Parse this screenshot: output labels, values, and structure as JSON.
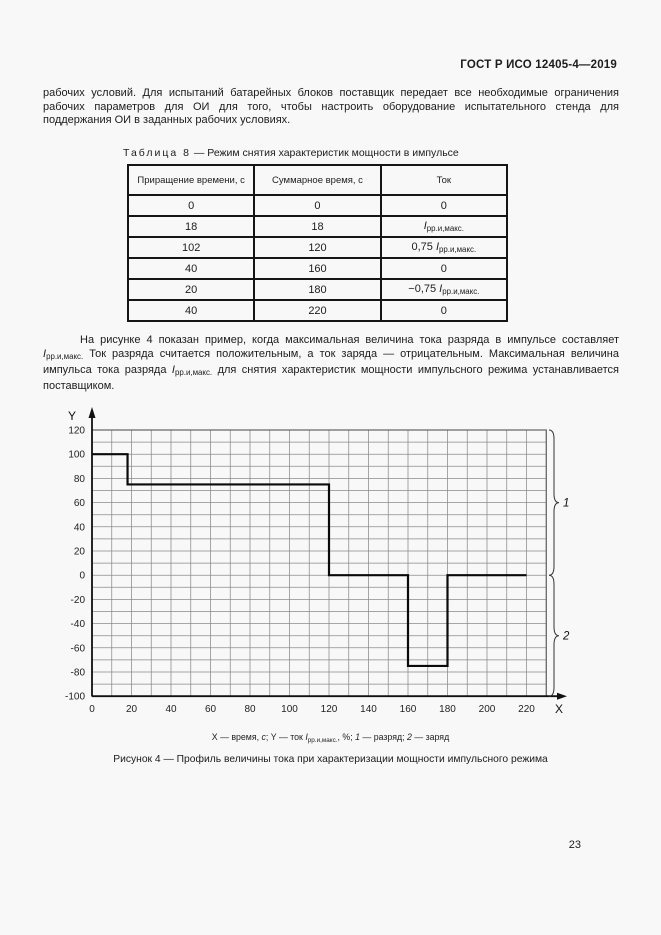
{
  "header": {
    "title": "ГОСТ Р ИСО 12405-4—2019"
  },
  "paragraphs": {
    "p1": "рабочих условий. Для испытаний батарейных блоков поставщик передает все необходимые ограничения рабочих параметров для ОИ для того, чтобы настроить оборудование испытательного стенда для поддержания ОИ в заданных рабочих условиях.",
    "p2": "На рисунке 4 показан пример, когда максимальная величина тока разряда в импульсе составляет [[i:I]][[sub:рр.и,макс.]] Ток разряда считается положительным, а ток заряда — отрицательным. Максимальная величина импульса тока разряда [[i:I]][[sub:рр.и,макс.]] для снятия характеристик мощности импульсного режима устанавливается поставщиком."
  },
  "table": {
    "title_word": "Таблица 8",
    "title_rest": " — Режим снятия характеристик мощности в импульсе",
    "columns": [
      "Приращение времени, с",
      "Суммарное время, с",
      "Ток"
    ],
    "rows": [
      [
        "0",
        "0",
        "0"
      ],
      [
        "18",
        "18",
        "[[i:I]][[sub:рр.и,макс.]]"
      ],
      [
        "102",
        "120",
        "0,75 [[i:I]][[sub:рр.и,макс.]]"
      ],
      [
        "40",
        "160",
        "0"
      ],
      [
        "20",
        "180",
        "−0,75 [[i:I]][[sub:рр.и,макс.]]"
      ],
      [
        "40",
        "220",
        "0"
      ]
    ]
  },
  "figure": {
    "legend": "X — время, [[i:с]]; Y — ток [[i:I]][[sub:рр.и,макс.]], %; [[i:1]] — разряд; [[i:2]] — заряд",
    "caption": "Рисунок 4 — Профиль величины тока при характеризации мощности импульсного режима"
  },
  "footer": {
    "page_number": "23"
  },
  "chart_data": {
    "type": "line",
    "style": "step-profile",
    "xlabel": "X",
    "ylabel": "Y",
    "xlim": [
      0,
      230
    ],
    "ylim": [
      -100,
      120
    ],
    "grid": true,
    "grid_step": 10,
    "xticks": [
      0,
      20,
      40,
      60,
      80,
      100,
      120,
      140,
      160,
      180,
      200,
      220
    ],
    "yticks": [
      120,
      100,
      80,
      60,
      40,
      20,
      0,
      -20,
      -40,
      -60,
      -80,
      -100
    ],
    "series": [
      {
        "name": "ток, % от Iрр.и,макс.",
        "x": [
          0,
          18,
          18,
          120,
          120,
          160,
          160,
          180,
          180,
          220
        ],
        "y": [
          100,
          100,
          75,
          75,
          0,
          0,
          -75,
          -75,
          0,
          0
        ]
      }
    ],
    "annotations": [
      {
        "label": "1",
        "meaning": "разряд",
        "y_from": 120,
        "y_to": 0
      },
      {
        "label": "2",
        "meaning": "заряд",
        "y_from": 0,
        "y_to": -100
      }
    ],
    "colors": {
      "line": "#0a0a0a",
      "grid": "#8a8a8a",
      "axis": "#111111"
    }
  }
}
